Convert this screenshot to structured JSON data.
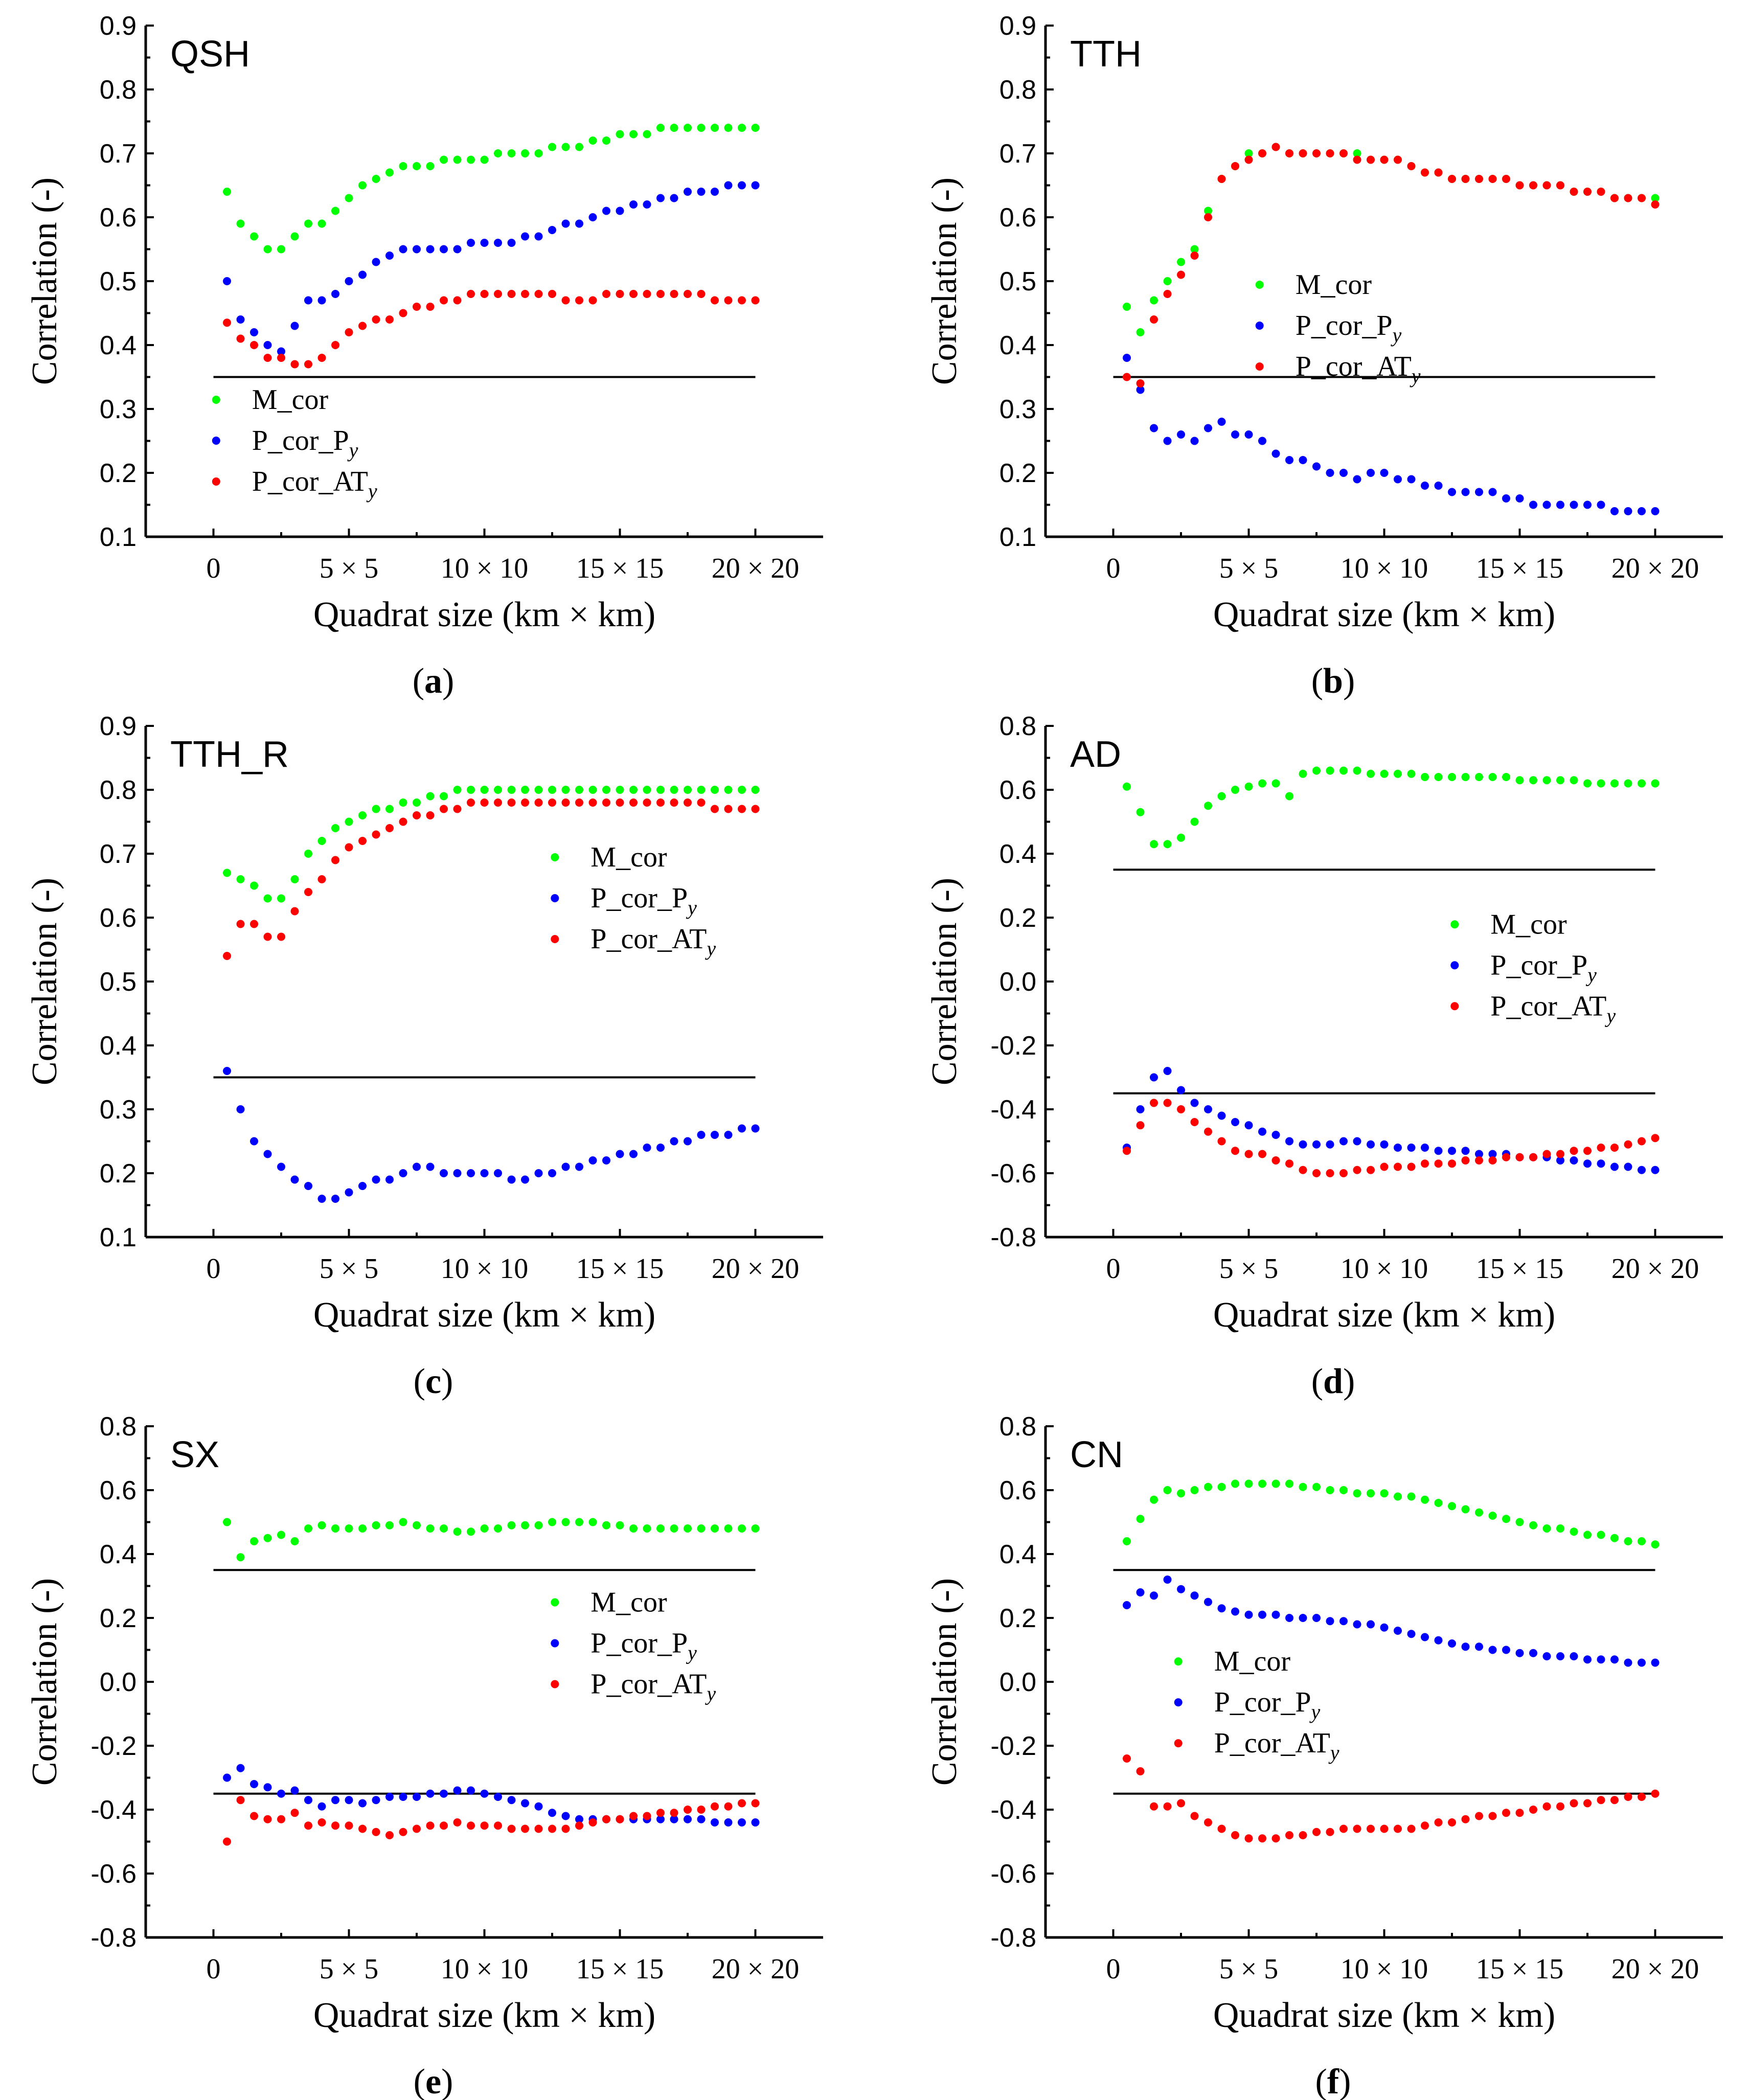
{
  "figure": {
    "xlabel": "Quadrat size (km × km)",
    "ylabel": "Correlation (-)"
  },
  "legend": {
    "m_cor": "M_cor",
    "p_cor_py": "P_cor_P",
    "p_cor_py_sub": "y",
    "p_cor_aty": "P_cor_AT",
    "p_cor_aty_sub": "y"
  },
  "colors": {
    "m_cor": "#00ff00",
    "p_cor_py": "#0000ff",
    "p_cor_aty": "#ff0000"
  },
  "x_tick_labels": [
    "0",
    "5 × 5",
    "10 × 10",
    "15 × 15",
    "20 × 20"
  ],
  "chart_data": [
    {
      "type": "scatter",
      "title": "QSH",
      "caption_letter": "a",
      "ylim": [
        0.1,
        0.9
      ],
      "yticks": [
        "0.1",
        "0.2",
        "0.3",
        "0.4",
        "0.5",
        "0.6",
        "0.7",
        "0.8",
        "0.9"
      ],
      "xlim": [
        -2.5,
        22.5
      ],
      "threshold": 0.35,
      "legend_anchor": [
        0.1,
        0.3
      ],
      "series": [
        {
          "name": "M_cor",
          "values": [
            0.64,
            0.59,
            0.57,
            0.55,
            0.55,
            0.57,
            0.59,
            0.59,
            0.61,
            0.63,
            0.65,
            0.66,
            0.67,
            0.68,
            0.68,
            0.68,
            0.69,
            0.69,
            0.69,
            0.69,
            0.7,
            0.7,
            0.7,
            0.7,
            0.71,
            0.71,
            0.71,
            0.72,
            0.72,
            0.73,
            0.73,
            0.73,
            0.74,
            0.74,
            0.74,
            0.74,
            0.74,
            0.74,
            0.74,
            0.74
          ]
        },
        {
          "name": "P_cor_Py",
          "values": [
            0.5,
            0.44,
            0.42,
            0.4,
            0.39,
            0.43,
            0.47,
            0.47,
            0.48,
            0.5,
            0.51,
            0.53,
            0.54,
            0.55,
            0.55,
            0.55,
            0.55,
            0.55,
            0.56,
            0.56,
            0.56,
            0.56,
            0.57,
            0.57,
            0.58,
            0.59,
            0.59,
            0.6,
            0.61,
            0.61,
            0.62,
            0.62,
            0.63,
            0.63,
            0.64,
            0.64,
            0.64,
            0.65,
            0.65,
            0.65
          ]
        },
        {
          "name": "P_cor_ATy",
          "values": [
            0.435,
            0.41,
            0.4,
            0.38,
            0.38,
            0.37,
            0.37,
            0.38,
            0.4,
            0.42,
            0.43,
            0.44,
            0.44,
            0.45,
            0.46,
            0.46,
            0.47,
            0.47,
            0.48,
            0.48,
            0.48,
            0.48,
            0.48,
            0.48,
            0.48,
            0.47,
            0.47,
            0.47,
            0.48,
            0.48,
            0.48,
            0.48,
            0.48,
            0.48,
            0.48,
            0.48,
            0.47,
            0.47,
            0.47,
            0.47
          ]
        }
      ]
    },
    {
      "type": "scatter",
      "title": "TTH",
      "caption_letter": "b",
      "ylim": [
        0.1,
        0.9
      ],
      "yticks": [
        "0.1",
        "0.2",
        "0.3",
        "0.4",
        "0.5",
        "0.6",
        "0.7",
        "0.8",
        "0.9"
      ],
      "xlim": [
        -2.5,
        22.5
      ],
      "threshold": 0.35,
      "legend_anchor": [
        5.4,
        0.48
      ],
      "series": [
        {
          "name": "M_cor",
          "values": [
            0.46,
            0.42,
            0.47,
            0.5,
            0.53,
            0.55,
            0.61,
            0.66,
            0.68,
            0.7,
            0.7,
            0.71,
            0.7,
            0.7,
            0.7,
            0.7,
            0.7,
            0.7,
            0.69,
            0.69,
            0.69,
            0.68,
            0.67,
            0.67,
            0.66,
            0.66,
            0.66,
            0.66,
            0.66,
            0.65,
            0.65,
            0.65,
            0.65,
            0.64,
            0.64,
            0.64,
            0.63,
            0.63,
            0.63,
            0.63
          ]
        },
        {
          "name": "P_cor_Py",
          "values": [
            0.38,
            0.33,
            0.27,
            0.25,
            0.26,
            0.25,
            0.27,
            0.28,
            0.26,
            0.26,
            0.25,
            0.23,
            0.22,
            0.22,
            0.21,
            0.2,
            0.2,
            0.19,
            0.2,
            0.2,
            0.19,
            0.19,
            0.18,
            0.18,
            0.17,
            0.17,
            0.17,
            0.17,
            0.16,
            0.16,
            0.15,
            0.15,
            0.15,
            0.15,
            0.15,
            0.15,
            0.14,
            0.14,
            0.14,
            0.14
          ]
        },
        {
          "name": "P_cor_ATy",
          "values": [
            0.35,
            0.34,
            0.44,
            0.48,
            0.51,
            0.54,
            0.6,
            0.66,
            0.68,
            0.69,
            0.7,
            0.71,
            0.7,
            0.7,
            0.7,
            0.7,
            0.7,
            0.69,
            0.69,
            0.69,
            0.69,
            0.68,
            0.67,
            0.67,
            0.66,
            0.66,
            0.66,
            0.66,
            0.66,
            0.65,
            0.65,
            0.65,
            0.65,
            0.64,
            0.64,
            0.64,
            0.63,
            0.63,
            0.63,
            0.62
          ]
        }
      ]
    },
    {
      "type": "scatter",
      "title": "TTH_R",
      "caption_letter": "c",
      "ylim": [
        0.1,
        0.9
      ],
      "yticks": [
        "0.1",
        "0.2",
        "0.3",
        "0.4",
        "0.5",
        "0.6",
        "0.7",
        "0.8",
        "0.9"
      ],
      "xlim": [
        -2.5,
        22.5
      ],
      "threshold": 0.35,
      "legend_anchor": [
        12.6,
        0.68
      ],
      "series": [
        {
          "name": "M_cor",
          "values": [
            0.67,
            0.66,
            0.65,
            0.63,
            0.63,
            0.66,
            0.7,
            0.72,
            0.74,
            0.75,
            0.76,
            0.77,
            0.77,
            0.78,
            0.78,
            0.79,
            0.79,
            0.8,
            0.8,
            0.8,
            0.8,
            0.8,
            0.8,
            0.8,
            0.8,
            0.8,
            0.8,
            0.8,
            0.8,
            0.8,
            0.8,
            0.8,
            0.8,
            0.8,
            0.8,
            0.8,
            0.8,
            0.8,
            0.8,
            0.8
          ]
        },
        {
          "name": "P_cor_Py",
          "values": [
            0.36,
            0.3,
            0.25,
            0.23,
            0.21,
            0.19,
            0.18,
            0.16,
            0.16,
            0.17,
            0.18,
            0.19,
            0.19,
            0.2,
            0.21,
            0.21,
            0.2,
            0.2,
            0.2,
            0.2,
            0.2,
            0.19,
            0.19,
            0.2,
            0.2,
            0.21,
            0.21,
            0.22,
            0.22,
            0.23,
            0.23,
            0.24,
            0.24,
            0.25,
            0.25,
            0.26,
            0.26,
            0.26,
            0.27,
            0.27
          ]
        },
        {
          "name": "P_cor_ATy",
          "values": [
            0.54,
            0.59,
            0.59,
            0.57,
            0.57,
            0.61,
            0.64,
            0.66,
            0.69,
            0.71,
            0.72,
            0.73,
            0.74,
            0.75,
            0.76,
            0.76,
            0.77,
            0.77,
            0.78,
            0.78,
            0.78,
            0.78,
            0.78,
            0.78,
            0.78,
            0.78,
            0.78,
            0.78,
            0.78,
            0.78,
            0.78,
            0.78,
            0.78,
            0.78,
            0.78,
            0.78,
            0.77,
            0.77,
            0.77,
            0.77
          ]
        }
      ]
    },
    {
      "type": "scatter",
      "title": "AD",
      "caption_letter": "d",
      "ylim": [
        -0.8,
        0.8
      ],
      "yticks": [
        "-0.8",
        "-0.6",
        "-0.4",
        "-0.2",
        "0.0",
        "0.2",
        "0.4",
        "0.6",
        "0.8"
      ],
      "xlim": [
        -2.5,
        22.5
      ],
      "threshold": [
        0.35,
        -0.35
      ],
      "legend_anchor": [
        12.6,
        0.15
      ],
      "series": [
        {
          "name": "M_cor",
          "values": [
            0.61,
            0.53,
            0.43,
            0.43,
            0.45,
            0.5,
            0.55,
            0.58,
            0.6,
            0.61,
            0.62,
            0.62,
            0.58,
            0.65,
            0.66,
            0.66,
            0.66,
            0.66,
            0.65,
            0.65,
            0.65,
            0.65,
            0.64,
            0.64,
            0.64,
            0.64,
            0.64,
            0.64,
            0.64,
            0.63,
            0.63,
            0.63,
            0.63,
            0.63,
            0.62,
            0.62,
            0.62,
            0.62,
            0.62,
            0.62
          ]
        },
        {
          "name": "P_cor_Py",
          "values": [
            -0.52,
            -0.4,
            -0.3,
            -0.28,
            -0.34,
            -0.38,
            -0.4,
            -0.42,
            -0.44,
            -0.45,
            -0.47,
            -0.48,
            -0.5,
            -0.51,
            -0.51,
            -0.51,
            -0.5,
            -0.5,
            -0.51,
            -0.51,
            -0.52,
            -0.52,
            -0.52,
            -0.53,
            -0.53,
            -0.53,
            -0.54,
            -0.54,
            -0.54,
            -0.55,
            -0.55,
            -0.55,
            -0.56,
            -0.56,
            -0.57,
            -0.57,
            -0.58,
            -0.58,
            -0.59,
            -0.59
          ]
        },
        {
          "name": "P_cor_ATy",
          "values": [
            -0.53,
            -0.45,
            -0.38,
            -0.38,
            -0.4,
            -0.44,
            -0.47,
            -0.5,
            -0.53,
            -0.54,
            -0.54,
            -0.56,
            -0.57,
            -0.59,
            -0.6,
            -0.6,
            -0.6,
            -0.59,
            -0.59,
            -0.58,
            -0.58,
            -0.58,
            -0.57,
            -0.57,
            -0.57,
            -0.56,
            -0.56,
            -0.56,
            -0.55,
            -0.55,
            -0.55,
            -0.54,
            -0.54,
            -0.53,
            -0.53,
            -0.52,
            -0.52,
            -0.51,
            -0.5,
            -0.49
          ]
        }
      ]
    },
    {
      "type": "scatter",
      "title": "SX",
      "caption_letter": "e",
      "ylim": [
        -0.8,
        0.8
      ],
      "yticks": [
        "-0.8",
        "-0.6",
        "-0.4",
        "-0.2",
        "0.0",
        "0.2",
        "0.4",
        "0.6",
        "0.8"
      ],
      "xlim": [
        -2.5,
        22.5
      ],
      "threshold": [
        0.35,
        -0.35
      ],
      "legend_anchor": [
        12.6,
        0.22
      ],
      "series": [
        {
          "name": "M_cor",
          "values": [
            0.5,
            0.39,
            0.44,
            0.45,
            0.46,
            0.44,
            0.48,
            0.49,
            0.48,
            0.48,
            0.48,
            0.49,
            0.49,
            0.5,
            0.49,
            0.48,
            0.48,
            0.47,
            0.47,
            0.48,
            0.48,
            0.49,
            0.49,
            0.49,
            0.5,
            0.5,
            0.5,
            0.5,
            0.49,
            0.49,
            0.48,
            0.48,
            0.48,
            0.48,
            0.48,
            0.48,
            0.48,
            0.48,
            0.48,
            0.48
          ]
        },
        {
          "name": "P_cor_Py",
          "values": [
            -0.3,
            -0.27,
            -0.32,
            -0.33,
            -0.35,
            -0.34,
            -0.37,
            -0.39,
            -0.37,
            -0.37,
            -0.38,
            -0.37,
            -0.36,
            -0.36,
            -0.36,
            -0.35,
            -0.35,
            -0.34,
            -0.34,
            -0.35,
            -0.36,
            -0.37,
            -0.38,
            -0.39,
            -0.41,
            -0.42,
            -0.43,
            -0.43,
            -0.43,
            -0.43,
            -0.43,
            -0.43,
            -0.43,
            -0.43,
            -0.43,
            -0.43,
            -0.44,
            -0.44,
            -0.44,
            -0.44
          ]
        },
        {
          "name": "P_cor_ATy",
          "values": [
            -0.5,
            -0.37,
            -0.42,
            -0.43,
            -0.43,
            -0.41,
            -0.45,
            -0.44,
            -0.45,
            -0.45,
            -0.46,
            -0.47,
            -0.48,
            -0.47,
            -0.46,
            -0.45,
            -0.45,
            -0.44,
            -0.45,
            -0.45,
            -0.45,
            -0.46,
            -0.46,
            -0.46,
            -0.46,
            -0.46,
            -0.45,
            -0.44,
            -0.43,
            -0.43,
            -0.42,
            -0.42,
            -0.41,
            -0.41,
            -0.4,
            -0.4,
            -0.39,
            -0.39,
            -0.38,
            -0.38
          ]
        }
      ]
    },
    {
      "type": "scatter",
      "title": "CN",
      "caption_letter": "f",
      "ylim": [
        -0.8,
        0.8
      ],
      "yticks": [
        "-0.8",
        "-0.6",
        "-0.4",
        "-0.2",
        "0.0",
        "0.2",
        "0.4",
        "0.6",
        "0.8"
      ],
      "xlim": [
        -2.5,
        22.5
      ],
      "threshold": [
        0.35,
        -0.35
      ],
      "legend_anchor": [
        2.4,
        0.035
      ],
      "series": [
        {
          "name": "M_cor",
          "values": [
            0.44,
            0.51,
            0.57,
            0.6,
            0.59,
            0.6,
            0.61,
            0.61,
            0.62,
            0.62,
            0.62,
            0.62,
            0.62,
            0.61,
            0.61,
            0.6,
            0.6,
            0.59,
            0.59,
            0.59,
            0.58,
            0.58,
            0.57,
            0.56,
            0.55,
            0.54,
            0.53,
            0.52,
            0.51,
            0.5,
            0.49,
            0.48,
            0.48,
            0.47,
            0.46,
            0.46,
            0.45,
            0.44,
            0.44,
            0.43
          ]
        },
        {
          "name": "P_cor_Py",
          "values": [
            0.24,
            0.28,
            0.27,
            0.32,
            0.29,
            0.27,
            0.25,
            0.23,
            0.22,
            0.21,
            0.21,
            0.21,
            0.2,
            0.2,
            0.2,
            0.19,
            0.19,
            0.18,
            0.18,
            0.17,
            0.16,
            0.15,
            0.14,
            0.13,
            0.12,
            0.11,
            0.11,
            0.1,
            0.1,
            0.09,
            0.09,
            0.08,
            0.08,
            0.08,
            0.07,
            0.07,
            0.07,
            0.06,
            0.06,
            0.06
          ]
        },
        {
          "name": "P_cor_ATy",
          "values": [
            -0.24,
            -0.28,
            -0.39,
            -0.39,
            -0.38,
            -0.42,
            -0.44,
            -0.46,
            -0.48,
            -0.49,
            -0.49,
            -0.49,
            -0.48,
            -0.48,
            -0.47,
            -0.47,
            -0.46,
            -0.46,
            -0.46,
            -0.46,
            -0.46,
            -0.46,
            -0.45,
            -0.44,
            -0.44,
            -0.43,
            -0.42,
            -0.42,
            -0.41,
            -0.41,
            -0.4,
            -0.39,
            -0.39,
            -0.38,
            -0.38,
            -0.37,
            -0.37,
            -0.36,
            -0.36,
            -0.35
          ]
        }
      ]
    }
  ]
}
